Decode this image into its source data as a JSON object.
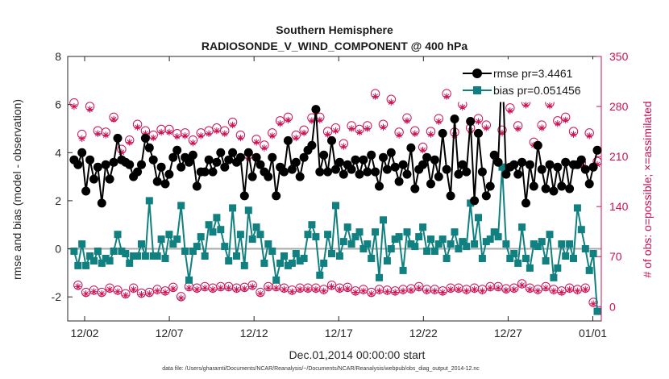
{
  "chart_data": {
    "type": "line",
    "title": "Southern Hemisphere",
    "subtitle": "RADIOSONDE_V_WIND_COMPONENT @ 400 hPa",
    "xlabel": "Dec.01,2014 00:00:00 start",
    "ylabel": "rmse and bias (model - observation)",
    "ylabel_right": "# of obs: o=possible; ×=assimilated",
    "ylim": [
      -3,
      8
    ],
    "ylim_right": [
      -20,
      350
    ],
    "xlim": [
      0,
      31.5
    ],
    "yticks": [
      -2,
      0,
      2,
      4,
      6,
      8
    ],
    "yticks_right": [
      0,
      70,
      140,
      210,
      280,
      350
    ],
    "xtick_positions": [
      1,
      6,
      11,
      16,
      21,
      26,
      31
    ],
    "xtick_labels": [
      "12/02",
      "12/07",
      "12/12",
      "12/17",
      "12/22",
      "12/27",
      "01/01"
    ],
    "legend_position": "top-right",
    "footnote": "data file: /Users/gharamti/Documents/NCAR/Reanalysis/~/Documents/NCAR/Reanalysis/webpub/obs_diag_output_2014-12.nc",
    "colors": {
      "rmse": "#000000",
      "bias": "#118080",
      "obs": "#cc1155",
      "zero": "#aaaaaa"
    },
    "series": [
      {
        "name": "rmse pr=3.4461",
        "values": [
          3.7,
          3.5,
          4.0,
          2.4,
          3.7,
          2.9,
          3.4,
          1.9,
          3.5,
          2.9,
          3.6,
          4.6,
          3.7,
          3.6,
          3.5,
          3.0,
          3.2,
          3.5,
          4.6,
          4.2,
          3.7,
          2.8,
          3.4,
          2.7,
          3.1,
          3.8,
          4.1,
          3.4,
          3.8,
          3.6,
          3.9,
          2.6,
          3.2,
          3.2,
          3.7,
          3.2,
          3.6,
          4.0,
          3.4,
          3.7,
          4.0,
          3.6,
          3.8,
          2.2,
          4.0,
          3.0,
          3.8,
          3.5,
          3.2,
          3.0,
          3.8,
          2.2,
          3.4,
          3.2,
          4.5,
          3.3,
          3.6,
          3.0,
          3.8,
          4.1,
          4.3,
          5.8,
          3.2,
          3.9,
          3.2,
          4.5,
          3.3,
          3.6,
          3.1,
          3.5,
          3.3,
          3.7,
          3.1,
          3.7,
          3.2,
          3.9,
          3.2,
          2.6,
          3.8,
          3.3,
          4.0,
          3.4,
          2.8,
          3.5,
          3.1,
          4.2,
          2.5,
          3.3,
          3.5,
          3.8,
          2.7,
          3.7,
          3.0,
          4.8,
          3.3,
          2.2,
          5.4,
          3.1,
          3.5,
          3.2,
          5.3,
          2.0,
          4.8,
          3.2,
          2.2,
          2.6,
          3.9,
          3.6,
          7.7,
          3.1,
          3.4,
          3.5,
          3.1,
          3.6,
          1.9,
          3.5,
          2.6,
          4.3,
          3.3,
          2.5,
          3.5,
          2.4,
          3.4,
          2.6,
          3.6,
          2.5,
          3.5,
          3.5,
          3.7,
          3.3,
          2.7,
          3.4,
          4.1
        ],
        "style": "line-circle"
      },
      {
        "name": "bias pr=0.051456",
        "values": [
          -0.1,
          -0.7,
          0.2,
          -0.7,
          -0.3,
          -0.5,
          -0.1,
          -0.6,
          -0.4,
          -0.5,
          -0.1,
          0.6,
          -0.1,
          -0.2,
          -0.6,
          -0.3,
          -0.3,
          0.2,
          -0.3,
          2.0,
          -0.3,
          -0.3,
          0.4,
          -0.4,
          0.6,
          0.2,
          0.4,
          1.8,
          -0.1,
          -1.3,
          -0.1,
          0.1,
          0.5,
          -0.3,
          1.0,
          0.7,
          1.3,
          0.8,
          0.1,
          -0.5,
          1.7,
          -0.3,
          0.6,
          -0.7,
          1.6,
          0.4,
          0.9,
          0.6,
          -0.6,
          0.2,
          -0.1,
          -1.3,
          -0.6,
          -0.3,
          -0.7,
          -0.6,
          -0.2,
          -0.5,
          -0.4,
          0.6,
          1.0,
          0.5,
          -1.1,
          -0.6,
          0.6,
          -0.2,
          1.8,
          -0.3,
          0.3,
          0.9,
          0.2,
          0.5,
          0.7,
          0.0,
          0.2,
          -0.4,
          0.7,
          -1.2,
          1.2,
          -0.5,
          0.0,
          0.4,
          0.5,
          -0.9,
          0.7,
          0.2,
          0.1,
          0.5,
          0.9,
          -0.1,
          0.4,
          -0.1,
          0.2,
          0.4,
          -0.4,
          0.2,
          0.7,
          0.0,
          0.3,
          0.1,
          1.9,
          0.2,
          1.3,
          -0.4,
          0.3,
          0.4,
          0.7,
          0.5,
          3.4,
          0.2,
          -0.4,
          -0.2,
          -0.6,
          0.9,
          -0.4,
          -0.8,
          0.2,
          0.1,
          0.3,
          -0.5,
          0.6,
          -1.2,
          -0.8,
          0.2,
          -0.3,
          0.2,
          -0.4,
          1.7,
          0.8,
          0.0,
          -0.9,
          -0.2,
          -2.6
        ],
        "style": "line-square"
      },
      {
        "name": "possible",
        "values": [
          285,
          30,
          241,
          20,
          280,
          23,
          246,
          20,
          244,
          26,
          265,
          23,
          220,
          18,
          233,
          26,
          255,
          19,
          246,
          20,
          240,
          24,
          248,
          22,
          248,
          27,
          242,
          14,
          243,
          28,
          233,
          26,
          243,
          28,
          246,
          26,
          250,
          28,
          246,
          28,
          258,
          26,
          240,
          27,
          212,
          30,
          234,
          20,
          226,
          28,
          243,
          28,
          260,
          26,
          265,
          23,
          240,
          26,
          247,
          26,
          264,
          26,
          265,
          24,
          245,
          30,
          250,
          26,
          228,
          27,
          253,
          22,
          248,
          24,
          253,
          20,
          298,
          24,
          255,
          23,
          290,
          22,
          244,
          24,
          264,
          25,
          246,
          28,
          223,
          24,
          245,
          24,
          263,
          22,
          298,
          26,
          244,
          26,
          283,
          24,
          250,
          26,
          263,
          24,
          254,
          28,
          298,
          28,
          247,
          25,
          278,
          26,
          253,
          32,
          286,
          26,
          230,
          24,
          254,
          28,
          285,
          24,
          260,
          22,
          265,
          26,
          245,
          24,
          201,
          26,
          243,
          6,
          203
        ],
        "style": "circle"
      },
      {
        "name": "assimilated",
        "values": [
          280,
          28,
          235,
          18,
          276,
          21,
          242,
          18,
          240,
          24,
          262,
          21,
          216,
          16,
          230,
          24,
          251,
          17,
          242,
          18,
          236,
          22,
          244,
          20,
          244,
          25,
          238,
          12,
          239,
          26,
          229,
          24,
          239,
          26,
          242,
          24,
          246,
          26,
          242,
          26,
          254,
          24,
          236,
          25,
          208,
          28,
          230,
          18,
          222,
          26,
          239,
          26,
          256,
          24,
          261,
          21,
          236,
          24,
          243,
          24,
          260,
          24,
          261,
          22,
          241,
          28,
          246,
          24,
          224,
          25,
          249,
          20,
          244,
          22,
          249,
          18,
          294,
          22,
          251,
          21,
          286,
          20,
          240,
          22,
          260,
          23,
          242,
          26,
          219,
          22,
          241,
          22,
          259,
          20,
          294,
          24,
          240,
          24,
          279,
          22,
          246,
          24,
          259,
          22,
          250,
          26,
          294,
          26,
          243,
          23,
          274,
          24,
          249,
          30,
          282,
          24,
          226,
          22,
          250,
          26,
          281,
          22,
          256,
          20,
          261,
          24,
          241,
          22,
          197,
          24,
          239,
          4,
          199
        ],
        "style": "asterisk"
      }
    ]
  }
}
